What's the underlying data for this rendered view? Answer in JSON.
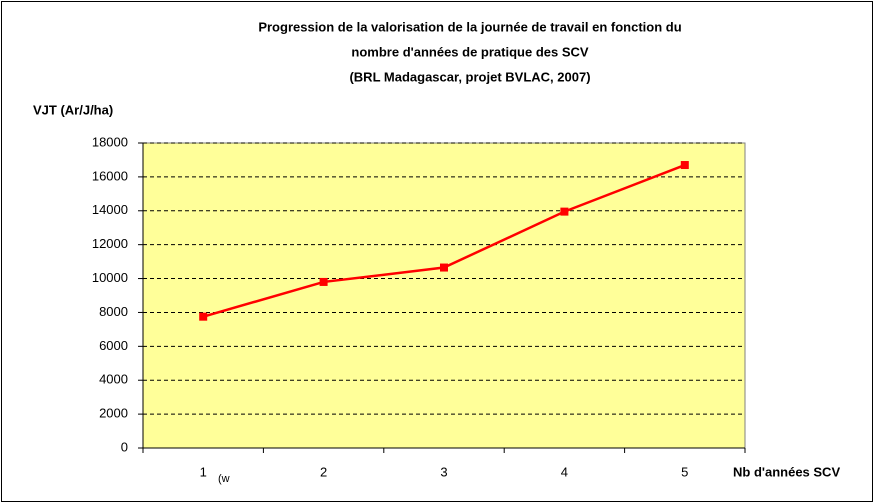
{
  "chart_data": {
    "type": "line",
    "title": [
      "Progression de la valorisation de la journée de travail en fonction du",
      "nombre d'années de pratique des SCV",
      "(BRL Madagascar, projet BVLAC, 2007)"
    ],
    "y_label": "VJT (Ar/J/ha)",
    "x_label": "Nb d'années SCV",
    "annotation": "(w",
    "categories": [
      "1",
      "2",
      "3",
      "4",
      "5"
    ],
    "values": [
      7750,
      9800,
      10650,
      13950,
      16700
    ],
    "color": "#ff0000",
    "plot_background": "#ffff99",
    "ylim": [
      0,
      18000
    ],
    "yticks": [
      0,
      2000,
      4000,
      6000,
      8000,
      10000,
      12000,
      14000,
      16000,
      18000
    ],
    "grid": true
  }
}
